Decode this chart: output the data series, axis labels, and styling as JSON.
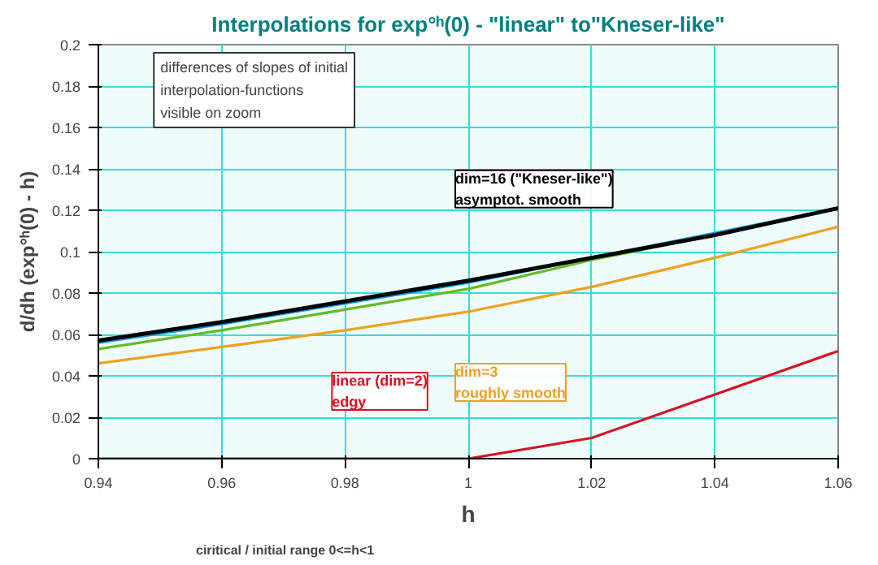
{
  "chart_data": {
    "type": "line",
    "title": "Interpolations for exp°ʰ(0) - \"linear\" to\"Kneser-like\"",
    "xlabel": "h",
    "ylabel": "d/dh (exp°ʰ(0) - h)",
    "x": [
      0.94,
      0.96,
      0.98,
      1.0,
      1.02,
      1.04,
      1.06
    ],
    "series": [
      {
        "color": "#00a0e0",
        "values": [
          0.056,
          0.065,
          0.075,
          0.085,
          0.097,
          0.109,
          0.121
        ]
      },
      {
        "color": "#66bb22",
        "values": [
          0.053,
          0.062,
          0.072,
          0.082,
          0.096,
          0.108,
          0.121
        ]
      },
      {
        "name": "dim=3\nroughly smooth",
        "color": "#f0a020",
        "values": [
          0.046,
          0.054,
          0.062,
          0.071,
          0.083,
          0.097,
          0.112
        ]
      },
      {
        "name": "linear (dim=2)\nedgy",
        "color": "#dd1122",
        "values": [
          0,
          0,
          0,
          0,
          0.01,
          0.031,
          0.052
        ]
      },
      {
        "name": "dim=16 (\"Kneser-like\")\nasymptot. smooth",
        "color": "#000000",
        "values": [
          0.057,
          0.066,
          0.076,
          0.086,
          0.097,
          0.108,
          0.121
        ]
      }
    ],
    "annotations": [
      "differences of slopes of initial\ninterpolation-functions\nvisible on zoom",
      "ciritical / initial range 0<=h<1"
    ],
    "xlim": [
      0.94,
      1.06
    ],
    "xticks": [
      0.94,
      0.96,
      0.98,
      1,
      1.02,
      1.04,
      1.06
    ],
    "ylim": [
      0,
      0.2
    ],
    "yticks": [
      0,
      0.02,
      0.04,
      0.06,
      0.08,
      0.1,
      0.12,
      0.14,
      0.16,
      0.18,
      0.2
    ],
    "grid": true,
    "marker": "none",
    "line_style": "solid"
  }
}
